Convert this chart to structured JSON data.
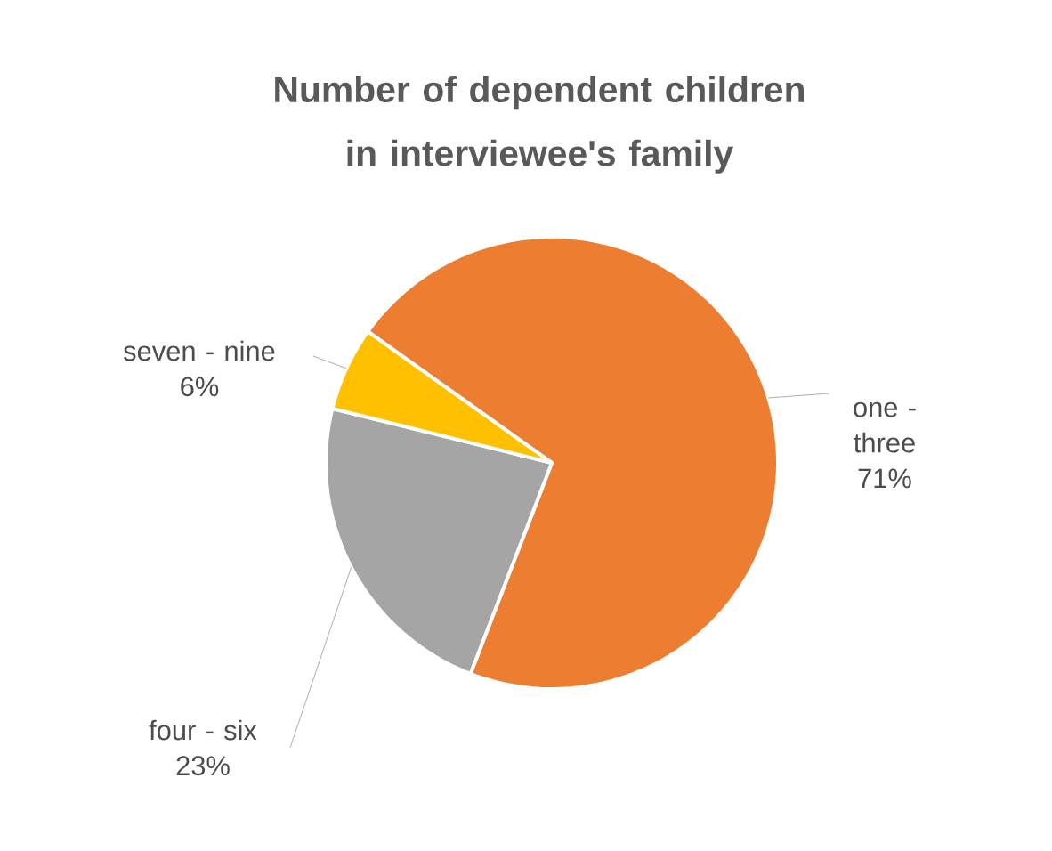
{
  "chart_data": {
    "type": "pie",
    "title": "Number of dependent children in interviewee's family",
    "categories": [
      "one - three",
      "four - six",
      "seven - nine"
    ],
    "values": [
      71,
      23,
      6
    ],
    "value_labels": [
      "71%",
      "23%",
      "6%"
    ],
    "colors": [
      "#ed7d31",
      "#a5a5a5",
      "#ffc000"
    ],
    "legend": false
  }
}
